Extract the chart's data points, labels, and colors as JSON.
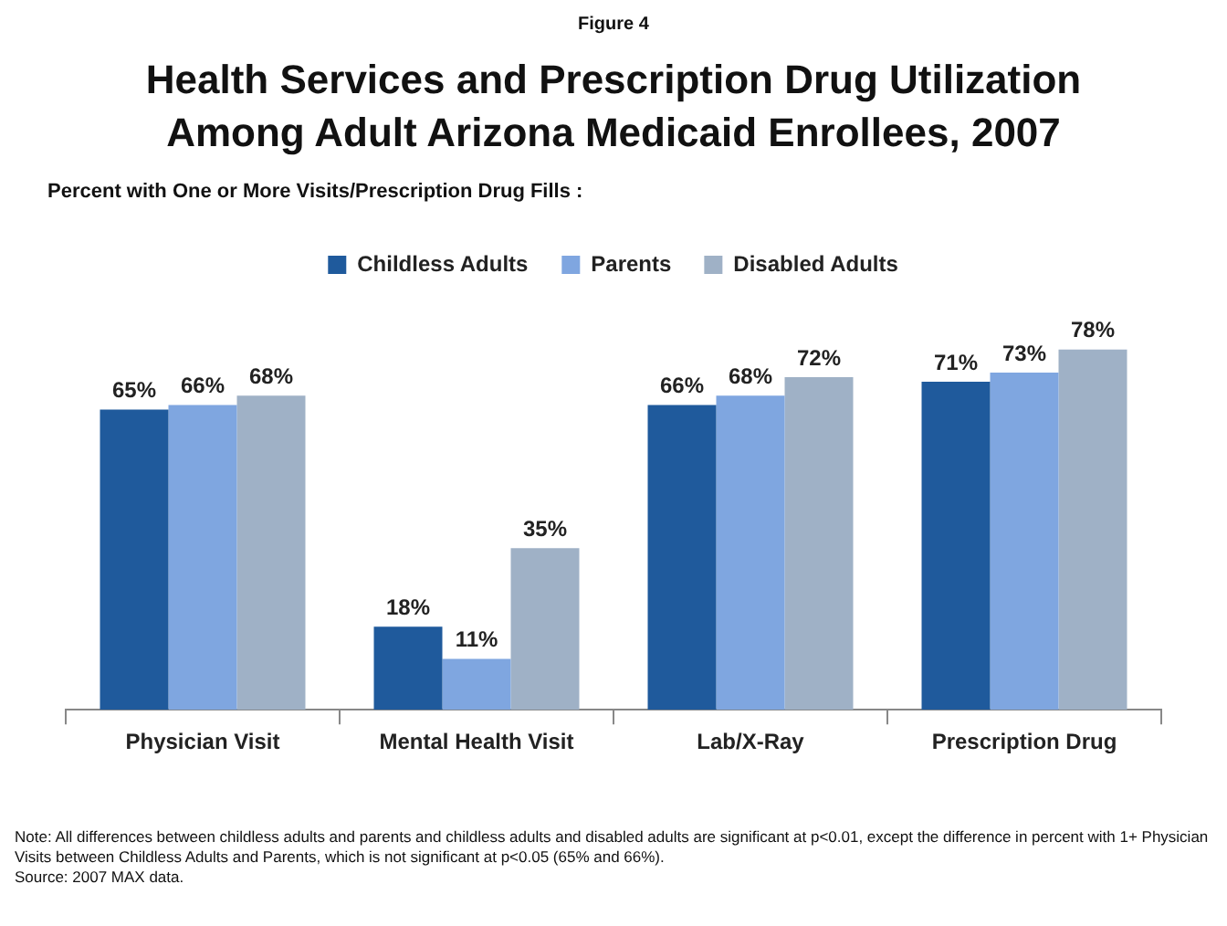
{
  "chart_data": {
    "type": "bar",
    "title": "Health Services and Prescription Drug Utilization Among Adult Arizona Medicaid Enrollees, 2007",
    "subtitle": "Percent with One or More Visits/Prescription Drug Fills :",
    "categories": [
      "Physician Visit",
      "Mental Health Visit",
      "Lab/X-Ray",
      "Prescription Drug"
    ],
    "series": [
      {
        "name": "Childless Adults",
        "color": "#1f5a9c",
        "values": [
          65,
          18,
          66,
          71
        ],
        "value_labels": [
          "65%",
          "18%",
          "66%",
          "71%"
        ]
      },
      {
        "name": "Parents",
        "color": "#7fa6e0",
        "values": [
          66,
          11,
          68,
          73
        ],
        "value_labels": [
          "66%",
          "11%",
          "68%",
          "73%"
        ]
      },
      {
        "name": "Disabled Adults",
        "color": "#9fb1c6",
        "values": [
          68,
          35,
          72,
          78
        ],
        "value_labels": [
          "68%",
          "35%",
          "72%",
          "78%"
        ]
      }
    ],
    "legend": "top",
    "grid": false,
    "annotations": [
      "Figure 4",
      "Note: All differences between childless  adults and parents and childless adults and disabled adults are significant at p<0.01, except the difference in percent with 1+ Physician Visits between Childless Adults and Parents, which is not significant at p<0.05 (65% and 66%).",
      "Source: 2007 MAX data."
    ]
  }
}
